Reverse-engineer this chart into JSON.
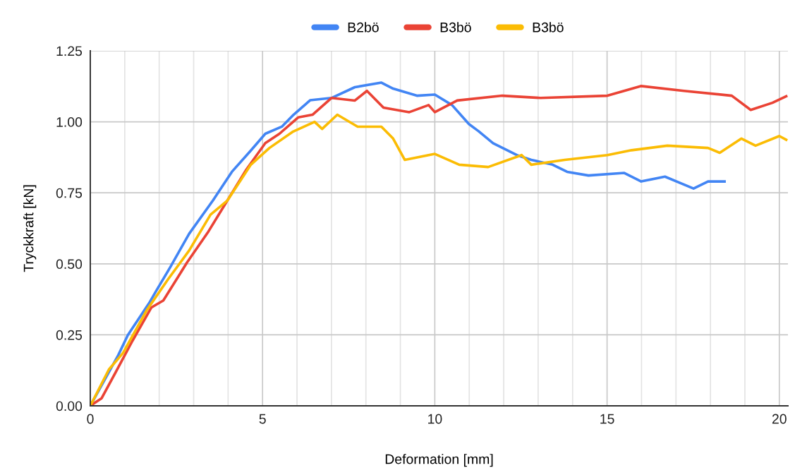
{
  "chart_data": {
    "type": "line",
    "xlabel": "Deformation [mm]",
    "ylabel": "Tryckkraft [kN]",
    "legend": "top",
    "grid": true,
    "marker": "none",
    "line_style": "solid",
    "xlim": [
      0,
      20.25
    ],
    "ylim": [
      0,
      1.25
    ],
    "xticks": [
      0,
      {
        "value": 1,
        "label": null
      },
      {
        "value": 2,
        "label": null
      },
      {
        "value": 3,
        "label": null
      },
      {
        "value": 4,
        "label": null
      },
      5,
      {
        "value": 6,
        "label": null
      },
      {
        "value": 7,
        "label": null
      },
      {
        "value": 8,
        "label": null
      },
      {
        "value": 9,
        "label": null
      },
      10,
      {
        "value": 11,
        "label": null
      },
      {
        "value": 12,
        "label": null
      },
      {
        "value": 13,
        "label": null
      },
      {
        "value": 14,
        "label": null
      },
      15,
      {
        "value": 16,
        "label": null
      },
      {
        "value": 17,
        "label": null
      },
      {
        "value": 18,
        "label": null
      },
      {
        "value": 19,
        "label": null
      },
      20
    ],
    "yticks": [
      {
        "value": 0,
        "label": "0.00"
      },
      {
        "value": 0.25,
        "label": "0.25"
      },
      {
        "value": 0.5,
        "label": "0.50"
      },
      {
        "value": 0.75,
        "label": "0.75"
      },
      {
        "value": 1,
        "label": "1.00"
      },
      {
        "value": 1.25,
        "label": "1.25"
      }
    ],
    "series": [
      {
        "name": "B2bö",
        "color": "#4285f4",
        "x": [
          0,
          0.81,
          1.09,
          1.71,
          1.91,
          2.32,
          2.87,
          3.56,
          4.11,
          4.66,
          5.08,
          5.56,
          5.9,
          6.38,
          7.0,
          7.68,
          8.45,
          8.79,
          9.48,
          10.0,
          10.5,
          10.99,
          11.27,
          11.69,
          12.38,
          12.8,
          13.42,
          13.84,
          14.46,
          15.5,
          15.99,
          16.68,
          17.51,
          17.93,
          18.41
        ],
        "values": [
          0,
          0.178,
          0.249,
          0.362,
          0.404,
          0.488,
          0.606,
          0.723,
          0.824,
          0.899,
          0.958,
          0.983,
          1.025,
          1.076,
          1.084,
          1.122,
          1.138,
          1.117,
          1.092,
          1.096,
          1.059,
          0.992,
          0.967,
          0.925,
          0.883,
          0.866,
          0.849,
          0.824,
          0.811,
          0.82,
          0.79,
          0.807,
          0.765,
          0.79,
          0.79
        ]
      },
      {
        "name": "B3bö",
        "color": "#ea4335",
        "x": [
          0,
          0.33,
          0.74,
          1.22,
          1.77,
          2.12,
          2.81,
          3.43,
          3.98,
          4.53,
          5.08,
          5.49,
          6.04,
          6.45,
          7.0,
          7.68,
          8.03,
          8.51,
          9.26,
          9.82,
          10.0,
          10.65,
          11.96,
          13.07,
          15.01,
          15.98,
          17.23,
          18.62,
          19.17,
          19.8,
          20.2
        ],
        "values": [
          0,
          0.027,
          0.119,
          0.228,
          0.346,
          0.371,
          0.505,
          0.614,
          0.723,
          0.832,
          0.925,
          0.958,
          1.016,
          1.025,
          1.084,
          1.075,
          1.109,
          1.05,
          1.034,
          1.059,
          1.034,
          1.075,
          1.092,
          1.084,
          1.092,
          1.126,
          1.109,
          1.092,
          1.042,
          1.067,
          1.09
        ]
      },
      {
        "name": "B3bö",
        "color": "#fbbc04",
        "x": [
          0,
          0.54,
          0.95,
          1.64,
          2.26,
          2.87,
          3.49,
          3.98,
          4.66,
          5.2,
          5.89,
          6.51,
          6.73,
          7.17,
          7.76,
          8.45,
          8.79,
          9.13,
          10.0,
          10.71,
          11.55,
          12.52,
          12.8,
          13.77,
          15.01,
          15.71,
          16.75,
          17.93,
          18.27,
          18.9,
          19.31,
          20.0,
          20.2
        ],
        "values": [
          0,
          0.128,
          0.186,
          0.337,
          0.446,
          0.547,
          0.673,
          0.723,
          0.849,
          0.908,
          0.966,
          1.0,
          0.975,
          1.025,
          0.983,
          0.983,
          0.941,
          0.866,
          0.887,
          0.849,
          0.841,
          0.883,
          0.849,
          0.866,
          0.883,
          0.9,
          0.916,
          0.908,
          0.891,
          0.941,
          0.916,
          0.95,
          0.937
        ]
      }
    ]
  }
}
